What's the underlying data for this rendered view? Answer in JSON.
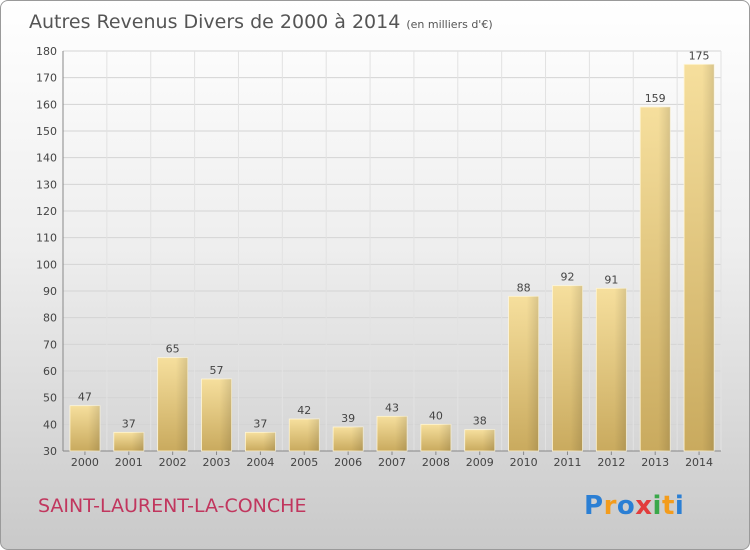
{
  "title": "Autres Revenus Divers de 2000 à 2014",
  "title_unit": "(en milliers d'€)",
  "commune": "SAINT-LAURENT-LA-CONCHE",
  "logo": {
    "letters": [
      "P",
      "r",
      "o",
      "x",
      "i",
      "t",
      "i"
    ],
    "colors": [
      "#2b7fd4",
      "#f39c1c",
      "#2b7fd4",
      "#e23c3c",
      "#3aa84a",
      "#f39c1c",
      "#2b7fd4"
    ]
  },
  "chart_data": {
    "type": "bar",
    "title": "Autres Revenus Divers de 2000 à 2014",
    "categories": [
      "2000",
      "2001",
      "2002",
      "2003",
      "2004",
      "2005",
      "2006",
      "2007",
      "2008",
      "2009",
      "2010",
      "2011",
      "2012",
      "2013",
      "2014"
    ],
    "values": [
      47,
      37,
      65,
      57,
      37,
      42,
      39,
      43,
      40,
      38,
      88,
      92,
      91,
      159,
      175
    ],
    "ylim": [
      30,
      180
    ],
    "yticks": [
      30,
      40,
      50,
      60,
      70,
      80,
      90,
      100,
      110,
      120,
      130,
      140,
      150,
      160,
      170,
      180
    ],
    "grid": true,
    "bar_color": "#e6c878"
  }
}
